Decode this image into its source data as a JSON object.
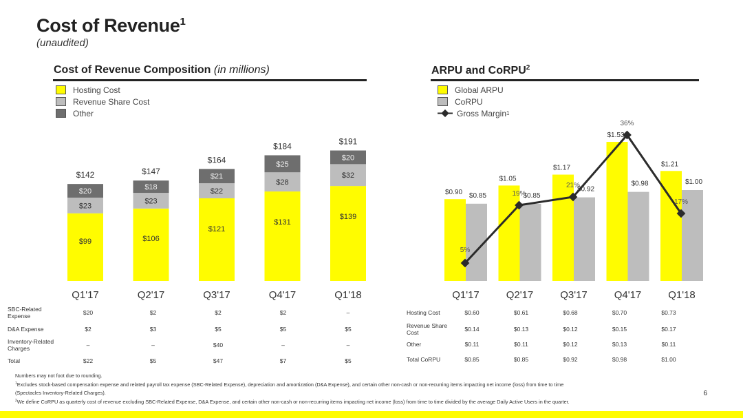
{
  "page": {
    "title": "Cost of Revenue",
    "title_sup": "1",
    "subtitle": "(unaudited)",
    "page_number": "6"
  },
  "colors": {
    "yellow": "#FFFC00",
    "light_gray": "#BDBDBD",
    "dark_gray": "#6E6E6E",
    "line": "#2B2B2B"
  },
  "left_section": {
    "title": "Cost of Revenue Composition",
    "title_italic": "(in millions)",
    "legend": [
      "Hosting Cost",
      "Revenue Share Cost",
      "Other"
    ]
  },
  "right_section": {
    "title": "ARPU and CoRPU",
    "title_sup": "2",
    "legend": [
      "Global ARPU",
      "CoRPU",
      "Gross Margin"
    ],
    "legend_gm_sup": "1"
  },
  "chart_data": [
    {
      "type": "bar",
      "stacked": true,
      "categories": [
        "Q1'17",
        "Q2'17",
        "Q3'17",
        "Q4'17",
        "Q1'18"
      ],
      "series": [
        {
          "name": "Hosting Cost",
          "values": [
            99,
            106,
            121,
            131,
            139
          ],
          "labels": [
            "$99",
            "$106",
            "$121",
            "$131",
            "$139"
          ]
        },
        {
          "name": "Revenue Share Cost",
          "values": [
            23,
            23,
            22,
            28,
            32
          ],
          "labels": [
            "$23",
            "$23",
            "$22",
            "$28",
            "$32"
          ]
        },
        {
          "name": "Other",
          "values": [
            20,
            18,
            21,
            25,
            20
          ],
          "labels": [
            "$20",
            "$18",
            "$21",
            "$25",
            "$20"
          ]
        }
      ],
      "totals": [
        142,
        147,
        164,
        184,
        191
      ],
      "total_labels": [
        "$142",
        "$147",
        "$164",
        "$184",
        "$191"
      ],
      "ylim": [
        0,
        200
      ]
    },
    {
      "type": "bar",
      "categories": [
        "Q1'17",
        "Q2'17",
        "Q3'17",
        "Q4'17",
        "Q1'18"
      ],
      "series": [
        {
          "name": "Global ARPU",
          "values": [
            0.9,
            1.05,
            1.17,
            1.53,
            1.21
          ],
          "labels": [
            "$0.90",
            "$1.05",
            "$1.17",
            "$1.53",
            "$1.21"
          ]
        },
        {
          "name": "CoRPU",
          "values": [
            0.85,
            0.85,
            0.92,
            0.98,
            1.0
          ],
          "labels": [
            "$0.85",
            "$0.85",
            "$0.92",
            "$0.98",
            "$1.00"
          ]
        }
      ],
      "line_series": {
        "name": "Gross Margin",
        "values": [
          5,
          19,
          21,
          36,
          17
        ],
        "labels": [
          "5%",
          "19%",
          "21%",
          "36%",
          "17%"
        ],
        "ylim": [
          0,
          50
        ]
      },
      "ylim": [
        0,
        1.6
      ]
    }
  ],
  "left_table": {
    "rows": [
      {
        "label": "SBC-Related Expense",
        "values": [
          "$20",
          "$2",
          "$2",
          "$2",
          "–"
        ]
      },
      {
        "label": "D&A Expense",
        "values": [
          "$2",
          "$3",
          "$5",
          "$5",
          "$5"
        ]
      },
      {
        "label": "Inventory-Related Charges",
        "values": [
          "–",
          "–",
          "$40",
          "–",
          "–"
        ]
      },
      {
        "label": "Total",
        "values": [
          "$22",
          "$5",
          "$47",
          "$7",
          "$5"
        ]
      }
    ]
  },
  "right_table": {
    "rows": [
      {
        "label": "Hosting Cost",
        "values": [
          "$0.60",
          "$0.61",
          "$0.68",
          "$0.70",
          "$0.73"
        ]
      },
      {
        "label": "Revenue Share Cost",
        "values": [
          "$0.14",
          "$0.13",
          "$0.12",
          "$0.15",
          "$0.17"
        ]
      },
      {
        "label": "Other",
        "values": [
          "$0.11",
          "$0.11",
          "$0.12",
          "$0.13",
          "$0.11"
        ]
      },
      {
        "label": "Total CoRPU",
        "values": [
          "$0.85",
          "$0.85",
          "$0.92",
          "$0.98",
          "$1.00"
        ]
      }
    ]
  },
  "footnotes": {
    "line0": "Numbers may not foot due to rounding.",
    "line1_sup": "1",
    "line1": "Excludes stock-based compensation expense and related payroll tax expense (SBC-Related Expense), depreciation and amortization (D&A Expense), and certain other non-cash or non-recurring items impacting net income (loss) from time to time",
    "line2": "(Spectacles Inventory-Related Charges).",
    "line3_sup": "2",
    "line3": "We define CoRPU as quarterly cost of revenue excluding SBC-Related Expense, D&A Expense, and certain other non-cash or non-recurring items impacting net income (loss) from time to time divided by the average Daily Active Users in the quarter."
  }
}
